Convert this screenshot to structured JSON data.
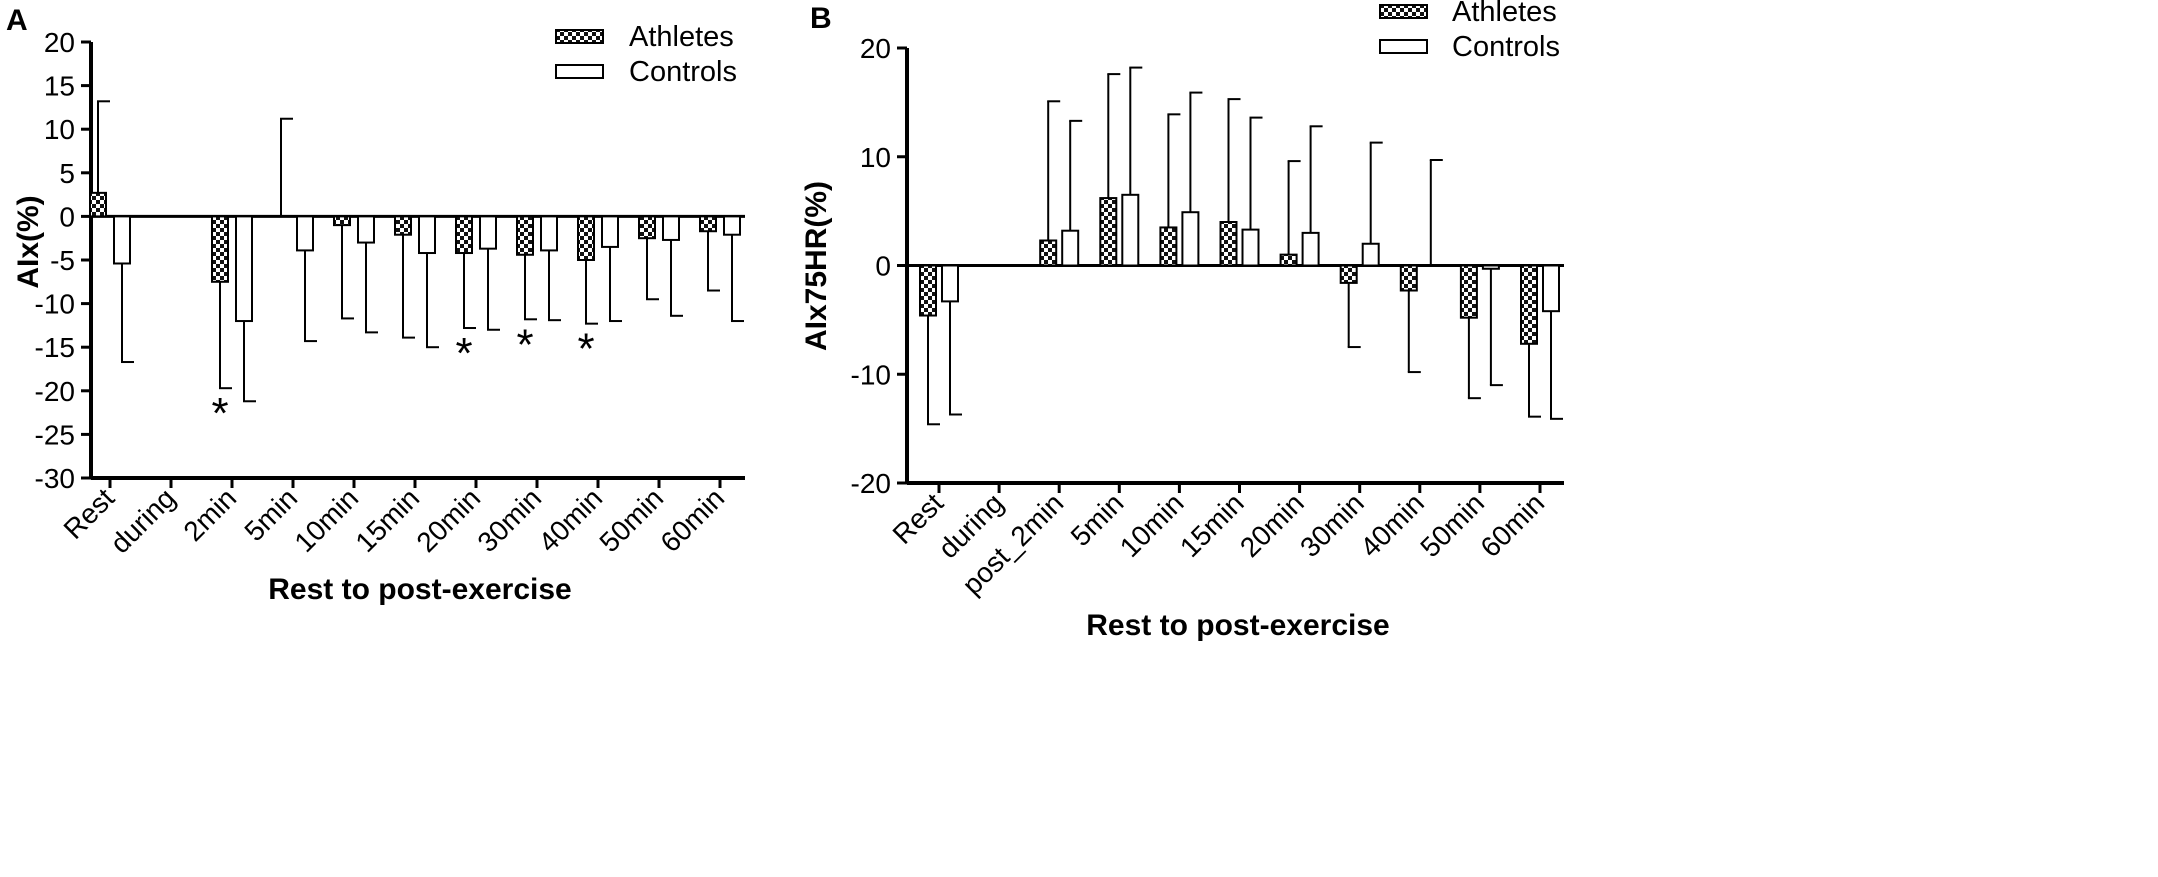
{
  "colors": {
    "axis": "#000000",
    "controls_fill": "#ffffff",
    "athletes_pattern": "checker"
  },
  "chart_data": [
    {
      "panel": "A",
      "type": "bar",
      "ylabel": "AIx(%)",
      "xlabel": "Rest to post-exercise",
      "ylim": [
        -30,
        20
      ],
      "yticks": [
        20,
        15,
        10,
        5,
        0,
        -5,
        -10,
        -15,
        -20,
        -25,
        -30
      ],
      "ytick_labels": [
        "20",
        "15",
        "10",
        "5",
        "0",
        "-5",
        "-10",
        "-15",
        "-20",
        "-25",
        "-30"
      ],
      "categories": [
        "Rest",
        "during",
        "2min",
        "5min",
        "10min",
        "15min",
        "20min",
        "30min",
        "40min",
        "50min",
        "60min"
      ],
      "legend": [
        "Athletes",
        "Controls"
      ],
      "legend_position": "top-right",
      "series": [
        {
          "name": "Athletes",
          "values": [
            2.7,
            null,
            -7.5,
            0,
            -1.0,
            -2.1,
            -4.2,
            -4.4,
            -5.0,
            -2.5,
            -1.7
          ],
          "errors": [
            10.5,
            null,
            12.2,
            11.2,
            10.7,
            11.8,
            8.6,
            7.4,
            7.3,
            7.0,
            6.8
          ]
        },
        {
          "name": "Controls",
          "values": [
            -5.4,
            null,
            -12.0,
            -3.9,
            -3.0,
            -4.2,
            -3.7,
            -3.9,
            -3.5,
            -2.7,
            -2.1
          ],
          "errors": [
            11.3,
            null,
            9.2,
            10.4,
            10.3,
            10.8,
            9.3,
            8.0,
            8.5,
            8.7,
            9.9
          ]
        }
      ],
      "annotations": [
        {
          "category": "2min",
          "text": "*"
        },
        {
          "category": "20min",
          "text": "*"
        },
        {
          "category": "30min",
          "text": "*"
        },
        {
          "category": "40min",
          "text": "*"
        }
      ]
    },
    {
      "panel": "B",
      "type": "bar",
      "ylabel": "AIx75HR(%)",
      "xlabel": "Rest to post-exercise",
      "ylim": [
        -20,
        20
      ],
      "yticks": [
        20,
        10,
        0,
        -10,
        -20
      ],
      "ytick_labels": [
        "20",
        "10",
        "0",
        "-10",
        "-20"
      ],
      "categories": [
        "Rest",
        "during",
        "post_2min",
        "5min",
        "10min",
        "15min",
        "20min",
        "30min",
        "40min",
        "50min",
        "60min"
      ],
      "legend": [
        "Athletes",
        "Controls"
      ],
      "legend_position": "top-right",
      "series": [
        {
          "name": "Athletes",
          "values": [
            -4.6,
            null,
            2.3,
            6.2,
            3.5,
            4.0,
            1.0,
            -1.6,
            -2.3,
            -4.8,
            -7.2
          ],
          "errors": [
            10.0,
            null,
            12.8,
            11.4,
            10.4,
            11.3,
            8.6,
            5.9,
            7.5,
            7.4,
            6.7
          ]
        },
        {
          "name": "Controls",
          "values": [
            -3.3,
            null,
            3.2,
            6.5,
            4.9,
            3.3,
            3.0,
            2.0,
            0,
            -0.3,
            -4.2
          ],
          "errors": [
            10.4,
            null,
            10.1,
            11.7,
            11.0,
            10.3,
            9.8,
            9.3,
            9.7,
            10.7,
            9.9
          ]
        }
      ]
    }
  ]
}
